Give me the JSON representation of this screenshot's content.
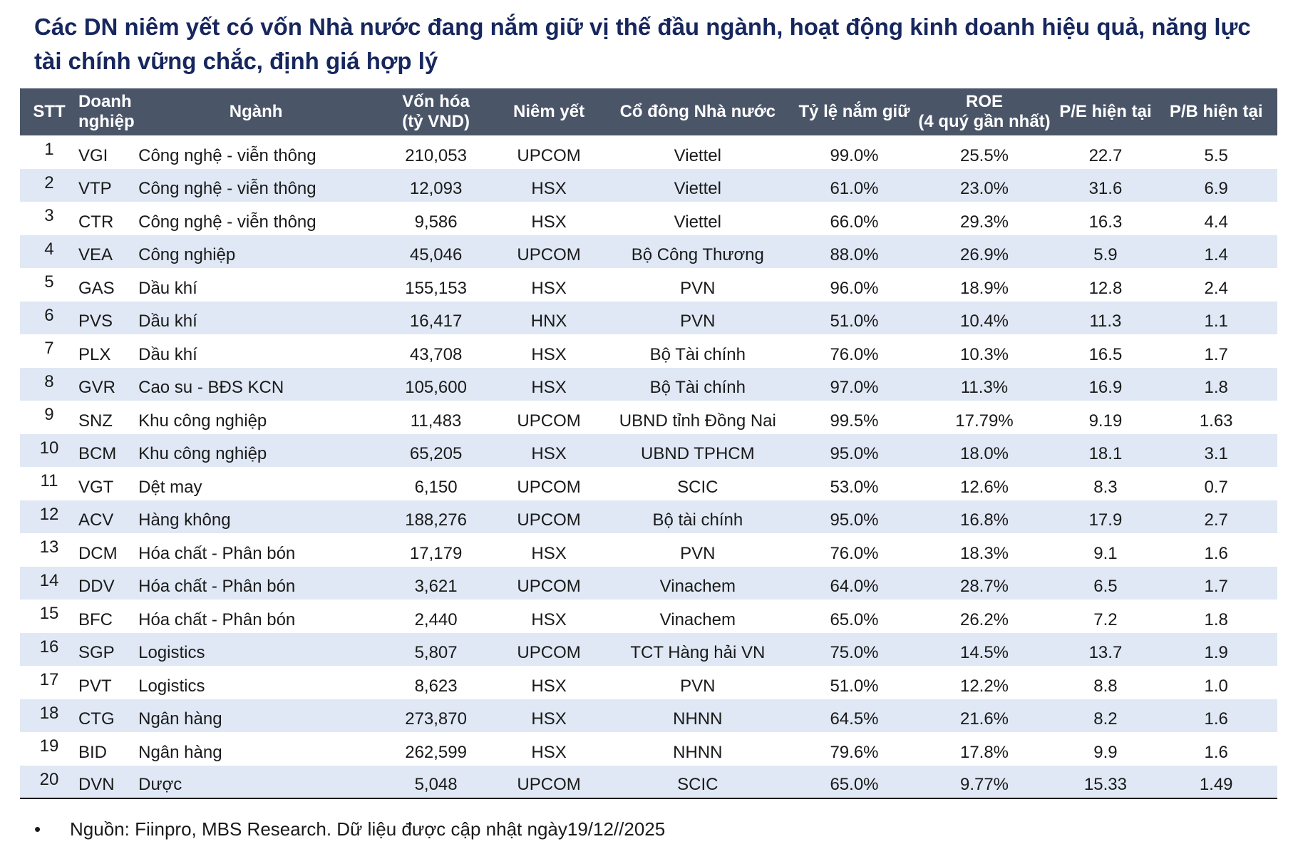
{
  "title": "Các DN niêm yết có vốn Nhà nước đang nắm giữ vị thế đầu ngành, hoạt động kinh doanh hiệu quả, năng lực tài chính vững chắc, định giá hợp lý",
  "colors": {
    "title": "#17275e",
    "header_bg": "#4a5568",
    "stripe": "#dfe8f4"
  },
  "table": {
    "headers": {
      "stt": "STT",
      "company_1": "Doanh",
      "company_2": "nghiệp",
      "industry": "Ngành",
      "cap_1": "Vốn hóa",
      "cap_2": "(tỷ VND)",
      "listing": "Niêm yết",
      "shareholder": "Cổ đông Nhà nước",
      "ownership": "Tỷ lệ nắm giữ",
      "roe_1": "ROE",
      "roe_2": "(4 quý gần nhất)",
      "pe": "P/E hiện tại",
      "pb": "P/B hiện tại"
    },
    "rows": [
      [
        "1",
        "VGI",
        "Công nghệ - viễn thông",
        "210,053",
        "UPCOM",
        "Viettel",
        "99.0%",
        "25.5%",
        "22.7",
        "5.5"
      ],
      [
        "2",
        "VTP",
        "Công nghệ - viễn thông",
        "12,093",
        "HSX",
        "Viettel",
        "61.0%",
        "23.0%",
        "31.6",
        "6.9"
      ],
      [
        "3",
        "CTR",
        "Công nghệ - viễn thông",
        "9,586",
        "HSX",
        "Viettel",
        "66.0%",
        "29.3%",
        "16.3",
        "4.4"
      ],
      [
        "4",
        "VEA",
        "Công nghiệp",
        "45,046",
        "UPCOM",
        "Bộ Công Thương",
        "88.0%",
        "26.9%",
        "5.9",
        "1.4"
      ],
      [
        "5",
        "GAS",
        "Dầu khí",
        "155,153",
        "HSX",
        "PVN",
        "96.0%",
        "18.9%",
        "12.8",
        "2.4"
      ],
      [
        "6",
        "PVS",
        "Dầu khí",
        "16,417",
        "HNX",
        "PVN",
        "51.0%",
        "10.4%",
        "11.3",
        "1.1"
      ],
      [
        "7",
        "PLX",
        "Dầu khí",
        "43,708",
        "HSX",
        "Bộ Tài chính",
        "76.0%",
        "10.3%",
        "16.5",
        "1.7"
      ],
      [
        "8",
        "GVR",
        "Cao su - BĐS KCN",
        "105,600",
        "HSX",
        "Bộ Tài chính",
        "97.0%",
        "11.3%",
        "16.9",
        "1.8"
      ],
      [
        "9",
        "SNZ",
        "Khu công nghiệp",
        "11,483",
        "UPCOM",
        "UBND tỉnh Đồng Nai",
        "99.5%",
        "17.79%",
        "9.19",
        "1.63"
      ],
      [
        "10",
        "BCM",
        "Khu công nghiệp",
        "65,205",
        "HSX",
        "UBND TPHCM",
        "95.0%",
        "18.0%",
        "18.1",
        "3.1"
      ],
      [
        "11",
        "VGT",
        "Dệt may",
        "6,150",
        "UPCOM",
        "SCIC",
        "53.0%",
        "12.6%",
        "8.3",
        "0.7"
      ],
      [
        "12",
        "ACV",
        "Hàng không",
        "188,276",
        "UPCOM",
        "Bộ tài chính",
        "95.0%",
        "16.8%",
        "17.9",
        "2.7"
      ],
      [
        "13",
        "DCM",
        "Hóa chất - Phân bón",
        "17,179",
        "HSX",
        "PVN",
        "76.0%",
        "18.3%",
        "9.1",
        "1.6"
      ],
      [
        "14",
        "DDV",
        "Hóa chất - Phân bón",
        "3,621",
        "UPCOM",
        "Vinachem",
        "64.0%",
        "28.7%",
        "6.5",
        "1.7"
      ],
      [
        "15",
        "BFC",
        "Hóa chất - Phân bón",
        "2,440",
        "HSX",
        "Vinachem",
        "65.0%",
        "26.2%",
        "7.2",
        "1.8"
      ],
      [
        "16",
        "SGP",
        "Logistics",
        "5,807",
        "UPCOM",
        "TCT Hàng hải VN",
        "75.0%",
        "14.5%",
        "13.7",
        "1.9"
      ],
      [
        "17",
        "PVT",
        "Logistics",
        "8,623",
        "HSX",
        "PVN",
        "51.0%",
        "12.2%",
        "8.8",
        "1.0"
      ],
      [
        "18",
        "CTG",
        "Ngân hàng",
        "273,870",
        "HSX",
        "NHNN",
        "64.5%",
        "21.6%",
        "8.2",
        "1.6"
      ],
      [
        "19",
        "BID",
        "Ngân hàng",
        "262,599",
        "HSX",
        "NHNN",
        "79.6%",
        "17.8%",
        "9.9",
        "1.6"
      ],
      [
        "20",
        "DVN",
        "Dược",
        "5,048",
        "UPCOM",
        "SCIC",
        "65.0%",
        "9.77%",
        "15.33",
        "1.49"
      ]
    ]
  },
  "footnote": {
    "bullet": "•",
    "text": "Nguồn: Fiinpro, MBS Research. Dữ liệu được cập nhật ngày19/12//2025"
  }
}
